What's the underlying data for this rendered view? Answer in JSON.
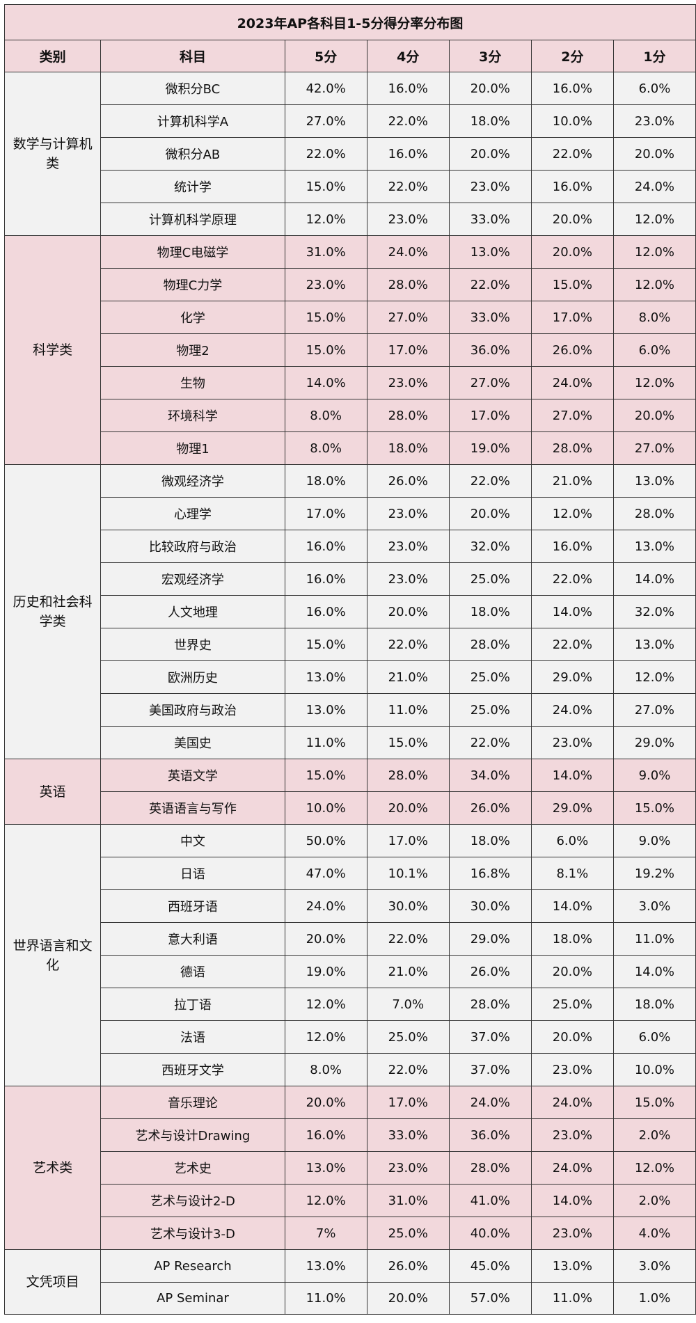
{
  "chart_data": {
    "type": "table",
    "title": "2023年AP各科目1-5分得分率分布图",
    "headers": [
      "类别",
      "科目",
      "5分",
      "4分",
      "3分",
      "2分",
      "1分"
    ],
    "colors": {
      "pink": "#f2d8dc",
      "grey": "#f2f2f2",
      "border": "#333333"
    },
    "groups": [
      {
        "category": "数学与计算机类",
        "shade": "grey",
        "rows": [
          [
            "微积分BC",
            "42.0%",
            "16.0%",
            "20.0%",
            "16.0%",
            "6.0%"
          ],
          [
            "计算机科学A",
            "27.0%",
            "22.0%",
            "18.0%",
            "10.0%",
            "23.0%"
          ],
          [
            "微积分AB",
            "22.0%",
            "16.0%",
            "20.0%",
            "22.0%",
            "20.0%"
          ],
          [
            "统计学",
            "15.0%",
            "22.0%",
            "23.0%",
            "16.0%",
            "24.0%"
          ],
          [
            "计算机科学原理",
            "12.0%",
            "23.0%",
            "33.0%",
            "20.0%",
            "12.0%"
          ]
        ]
      },
      {
        "category": "科学类",
        "shade": "pink",
        "rows": [
          [
            "物理C电磁学",
            "31.0%",
            "24.0%",
            "13.0%",
            "20.0%",
            "12.0%"
          ],
          [
            "物理C力学",
            "23.0%",
            "28.0%",
            "22.0%",
            "15.0%",
            "12.0%"
          ],
          [
            "化学",
            "15.0%",
            "27.0%",
            "33.0%",
            "17.0%",
            "8.0%"
          ],
          [
            "物理2",
            "15.0%",
            "17.0%",
            "36.0%",
            "26.0%",
            "6.0%"
          ],
          [
            "生物",
            "14.0%",
            "23.0%",
            "27.0%",
            "24.0%",
            "12.0%"
          ],
          [
            "环境科学",
            "8.0%",
            "28.0%",
            "17.0%",
            "27.0%",
            "20.0%"
          ],
          [
            "物理1",
            "8.0%",
            "18.0%",
            "19.0%",
            "28.0%",
            "27.0%"
          ]
        ]
      },
      {
        "category": "历史和社会科学类",
        "shade": "grey",
        "rows": [
          [
            "微观经济学",
            "18.0%",
            "26.0%",
            "22.0%",
            "21.0%",
            "13.0%"
          ],
          [
            "心理学",
            "17.0%",
            "23.0%",
            "20.0%",
            "12.0%",
            "28.0%"
          ],
          [
            "比较政府与政治",
            "16.0%",
            "23.0%",
            "32.0%",
            "16.0%",
            "13.0%"
          ],
          [
            "宏观经济学",
            "16.0%",
            "23.0%",
            "25.0%",
            "22.0%",
            "14.0%"
          ],
          [
            "人文地理",
            "16.0%",
            "20.0%",
            "18.0%",
            "14.0%",
            "32.0%"
          ],
          [
            "世界史",
            "15.0%",
            "22.0%",
            "28.0%",
            "22.0%",
            "13.0%"
          ],
          [
            "欧洲历史",
            "13.0%",
            "21.0%",
            "25.0%",
            "29.0%",
            "12.0%"
          ],
          [
            "美国政府与政治",
            "13.0%",
            "11.0%",
            "25.0%",
            "24.0%",
            "27.0%"
          ],
          [
            "美国史",
            "11.0%",
            "15.0%",
            "22.0%",
            "23.0%",
            "29.0%"
          ]
        ]
      },
      {
        "category": "英语",
        "shade": "pink",
        "rows": [
          [
            "英语文学",
            "15.0%",
            "28.0%",
            "34.0%",
            "14.0%",
            "9.0%"
          ],
          [
            "英语语言与写作",
            "10.0%",
            "20.0%",
            "26.0%",
            "29.0%",
            "15.0%"
          ]
        ]
      },
      {
        "category": "世界语言和文化",
        "shade": "grey",
        "rows": [
          [
            "中文",
            "50.0%",
            "17.0%",
            "18.0%",
            "6.0%",
            "9.0%"
          ],
          [
            "日语",
            "47.0%",
            "10.1%",
            "16.8%",
            "8.1%",
            "19.2%"
          ],
          [
            "西班牙语",
            "24.0%",
            "30.0%",
            "30.0%",
            "14.0%",
            "3.0%"
          ],
          [
            "意大利语",
            "20.0%",
            "22.0%",
            "29.0%",
            "18.0%",
            "11.0%"
          ],
          [
            "德语",
            "19.0%",
            "21.0%",
            "26.0%",
            "20.0%",
            "14.0%"
          ],
          [
            "拉丁语",
            "12.0%",
            "7.0%",
            "28.0%",
            "25.0%",
            "18.0%"
          ],
          [
            "法语",
            "12.0%",
            "25.0%",
            "37.0%",
            "20.0%",
            "6.0%"
          ],
          [
            "西班牙文学",
            "8.0%",
            "22.0%",
            "37.0%",
            "23.0%",
            "10.0%"
          ]
        ]
      },
      {
        "category": "艺术类",
        "shade": "pink",
        "rows": [
          [
            "音乐理论",
            "20.0%",
            "17.0%",
            "24.0%",
            "24.0%",
            "15.0%"
          ],
          [
            "艺术与设计Drawing",
            "16.0%",
            "33.0%",
            "36.0%",
            "23.0%",
            "2.0%"
          ],
          [
            "艺术史",
            "13.0%",
            "23.0%",
            "28.0%",
            "24.0%",
            "12.0%"
          ],
          [
            "艺术与设计2-D",
            "12.0%",
            "31.0%",
            "41.0%",
            "14.0%",
            "2.0%"
          ],
          [
            "艺术与设计3-D",
            "7%",
            "25.0%",
            "40.0%",
            "23.0%",
            "4.0%"
          ]
        ]
      },
      {
        "category": "文凭项目",
        "shade": "grey",
        "rows": [
          [
            "AP Research",
            "13.0%",
            "26.0%",
            "45.0%",
            "13.0%",
            "3.0%"
          ],
          [
            "AP Seminar",
            "11.0%",
            "20.0%",
            "57.0%",
            "11.0%",
            "1.0%"
          ]
        ]
      }
    ]
  }
}
